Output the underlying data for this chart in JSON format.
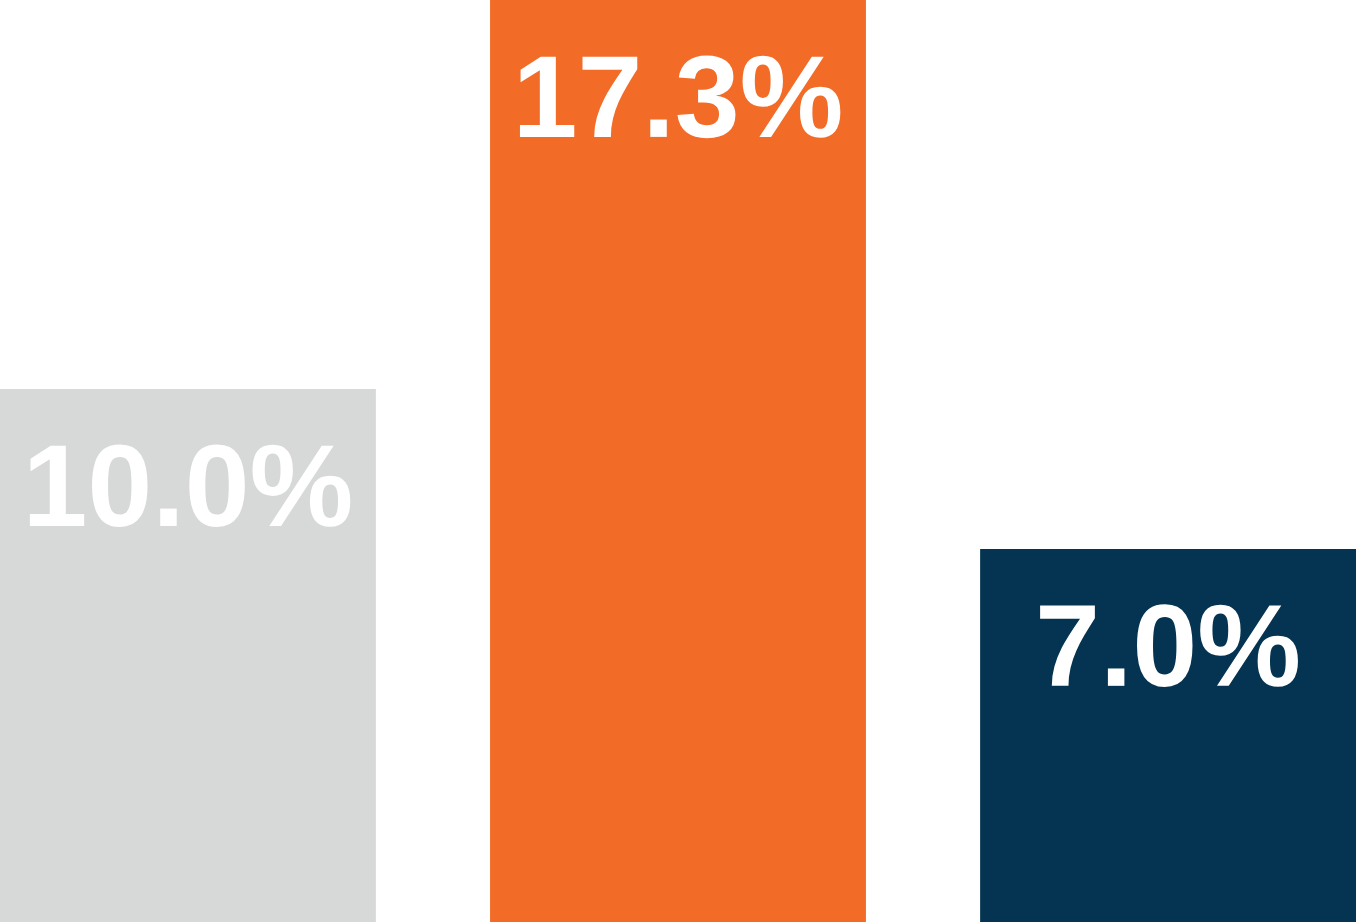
{
  "chart_data": {
    "type": "bar",
    "categories": [
      null,
      null,
      null
    ],
    "values": [
      10.0,
      17.3,
      7.0
    ],
    "colors": [
      "#d7d9d8",
      "#f26b27",
      "#043451"
    ],
    "value_labels": [
      "10.0%",
      "17.3%",
      "7.0%"
    ],
    "grid": false,
    "legend": false
  }
}
